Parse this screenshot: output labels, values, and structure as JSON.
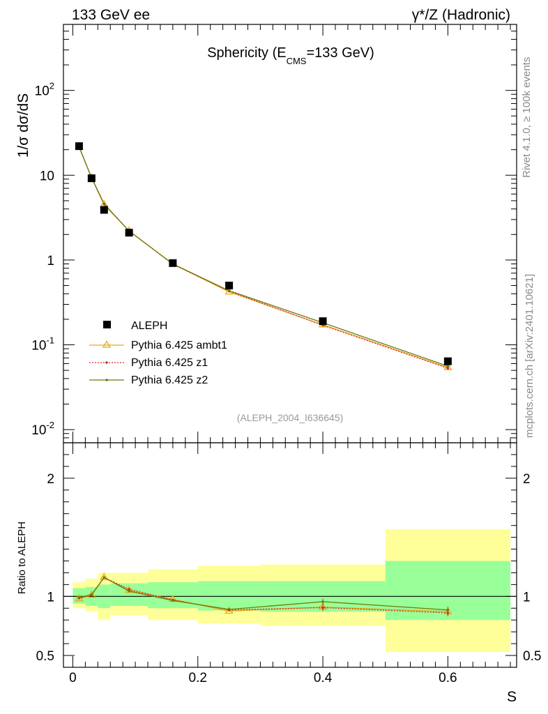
{
  "header": {
    "left": "133 GeV ee",
    "right": "γ*/Z (Hadronic)"
  },
  "side_text": {
    "rivet": "Rivet 4.1.0, ≥ 100k events",
    "mcplots": "mcplots.cern.ch [arXiv:2401.10621]"
  },
  "colors": {
    "data": "#000000",
    "ambt1": "#e6a817",
    "z1": "#e02020",
    "z2": "#6b7a10",
    "band_inner": "#99ff99",
    "band_outer": "#ffff99"
  },
  "chart_data": [
    {
      "type": "line",
      "scale": "log",
      "title_main": "Sphericity (E",
      "title_sub": "CMS",
      "title_rest": "=133 GeV)",
      "ylabel": "1/σ  dσ/dS",
      "xlim": [
        -0.015,
        0.71
      ],
      "ylim": [
        0.007,
        600
      ],
      "y_ticks": [
        {
          "value": 0.01,
          "base": "10",
          "exp": "-2"
        },
        {
          "value": 0.1,
          "base": "10",
          "exp": "-1"
        },
        {
          "value": 1,
          "base": "1",
          "exp": ""
        },
        {
          "value": 10,
          "base": "10",
          "exp": ""
        },
        {
          "value": 100,
          "base": "10",
          "exp": "2"
        }
      ],
      "annotation": "(ALEPH_2004_I636645)",
      "series": [
        {
          "name": "ALEPH",
          "kind": "data",
          "x": [
            0.01,
            0.03,
            0.05,
            0.09,
            0.16,
            0.25,
            0.4,
            0.6
          ],
          "y": [
            22.0,
            9.2,
            3.9,
            2.1,
            0.92,
            0.5,
            0.19,
            0.064
          ]
        },
        {
          "name": "Pythia 6.425 ambt1",
          "kind": "ambt1",
          "x": [
            0.01,
            0.03,
            0.05,
            0.09,
            0.16,
            0.25,
            0.4,
            0.6
          ],
          "y": [
            21.5,
            9.3,
            4.5,
            2.2,
            0.9,
            0.42,
            0.172,
            0.054
          ]
        },
        {
          "name": "Pythia 6.425 z1",
          "kind": "z1",
          "x": [
            0.01,
            0.03,
            0.05,
            0.09,
            0.16,
            0.25,
            0.4,
            0.6
          ],
          "y": [
            21.6,
            9.3,
            4.55,
            2.21,
            0.89,
            0.43,
            0.17,
            0.053
          ]
        },
        {
          "name": "Pythia 6.425 z2",
          "kind": "z2",
          "x": [
            0.01,
            0.03,
            0.05,
            0.09,
            0.16,
            0.25,
            0.4,
            0.6
          ],
          "y": [
            21.7,
            9.35,
            4.6,
            2.2,
            0.9,
            0.435,
            0.182,
            0.056
          ]
        }
      ]
    },
    {
      "type": "line",
      "ylabel": "Ratio to ALEPH",
      "xlabel": "S",
      "xlim": [
        -0.015,
        0.71
      ],
      "ylim": [
        0.4,
        2.3
      ],
      "y_ticks": [
        0.5,
        1,
        2
      ],
      "y_tick_labels": [
        "0.5",
        "1",
        "2"
      ],
      "x_ticks": [
        0,
        0.2,
        0.4,
        0.6
      ],
      "x_tick_labels": [
        "0",
        "0.2",
        "0.4",
        "0.6"
      ],
      "bins": [
        {
          "x0": 0.0,
          "x1": 0.02,
          "inner": [
            0.94,
            1.07
          ],
          "outer": [
            0.9,
            1.12
          ]
        },
        {
          "x0": 0.02,
          "x1": 0.04,
          "inner": [
            0.92,
            1.08
          ],
          "outer": [
            0.87,
            1.15
          ]
        },
        {
          "x0": 0.04,
          "x1": 0.06,
          "inner": [
            0.9,
            1.1
          ],
          "outer": [
            0.8,
            1.2
          ]
        },
        {
          "x0": 0.06,
          "x1": 0.12,
          "inner": [
            0.92,
            1.11
          ],
          "outer": [
            0.84,
            1.2
          ]
        },
        {
          "x0": 0.12,
          "x1": 0.2,
          "inner": [
            0.9,
            1.12
          ],
          "outer": [
            0.8,
            1.23
          ]
        },
        {
          "x0": 0.2,
          "x1": 0.3,
          "inner": [
            0.88,
            1.13
          ],
          "outer": [
            0.77,
            1.26
          ]
        },
        {
          "x0": 0.3,
          "x1": 0.5,
          "inner": [
            0.87,
            1.13
          ],
          "outer": [
            0.75,
            1.27
          ]
        },
        {
          "x0": 0.5,
          "x1": 0.7,
          "inner": [
            0.8,
            1.3
          ],
          "outer": [
            0.53,
            1.57
          ]
        }
      ],
      "series": [
        {
          "name": "Pythia 6.425 ambt1",
          "kind": "ambt1",
          "x": [
            0.01,
            0.03,
            0.05,
            0.09,
            0.16,
            0.25,
            0.4,
            0.6
          ],
          "y": [
            0.98,
            1.01,
            1.16,
            1.05,
            0.975,
            0.875,
            0.91,
            0.87
          ]
        },
        {
          "name": "Pythia 6.425 z1",
          "kind": "z1",
          "x": [
            0.01,
            0.03,
            0.05,
            0.09,
            0.16,
            0.25,
            0.4,
            0.6
          ],
          "y": [
            0.985,
            1.01,
            1.16,
            1.06,
            0.97,
            0.885,
            0.905,
            0.86
          ]
        },
        {
          "name": "Pythia 6.425 z2",
          "kind": "z2",
          "x": [
            0.01,
            0.03,
            0.05,
            0.09,
            0.16,
            0.25,
            0.4,
            0.6
          ],
          "y": [
            0.99,
            1.015,
            1.16,
            1.045,
            0.965,
            0.89,
            0.955,
            0.885
          ]
        }
      ]
    }
  ]
}
